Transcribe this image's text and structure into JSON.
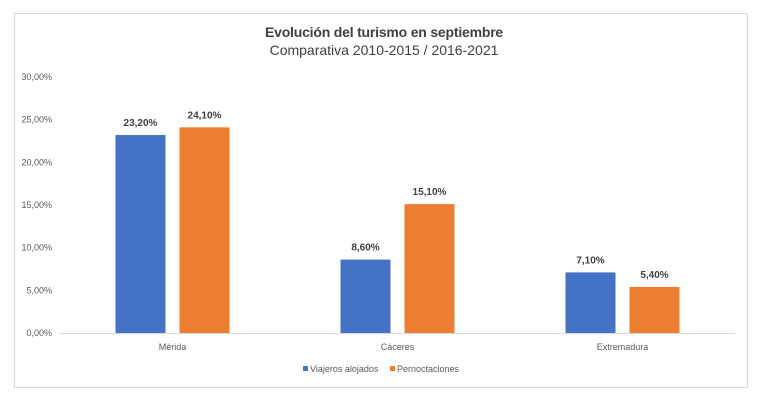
{
  "chart_data": {
    "type": "bar",
    "title": "Evolución del turismo en septiembre",
    "subtitle": "Comparativa 2010-2015 / 2016-2021",
    "xlabel": "",
    "ylabel": "",
    "categories": [
      "Mérida",
      "Cáceres",
      "Extremadura"
    ],
    "series": [
      {
        "name": "Viajeros alojados",
        "color": "#4472C4",
        "values": [
          23.2,
          8.6,
          7.1
        ],
        "labels": [
          "23,20%",
          "8,60%",
          "7,10%"
        ]
      },
      {
        "name": "Pernoctaciones",
        "color": "#ED7D31",
        "values": [
          24.1,
          15.1,
          5.4
        ],
        "labels": [
          "24,10%",
          "15,10%",
          "5,40%"
        ]
      }
    ],
    "ylim": [
      0,
      30
    ],
    "yticks": [
      0,
      5,
      10,
      15,
      20,
      25,
      30
    ],
    "ytick_labels": [
      "0,00%",
      "5,00%",
      "10,00%",
      "15,00%",
      "20,00%",
      "25,00%",
      "30,00%"
    ],
    "grid": false,
    "legend_position": "bottom"
  }
}
